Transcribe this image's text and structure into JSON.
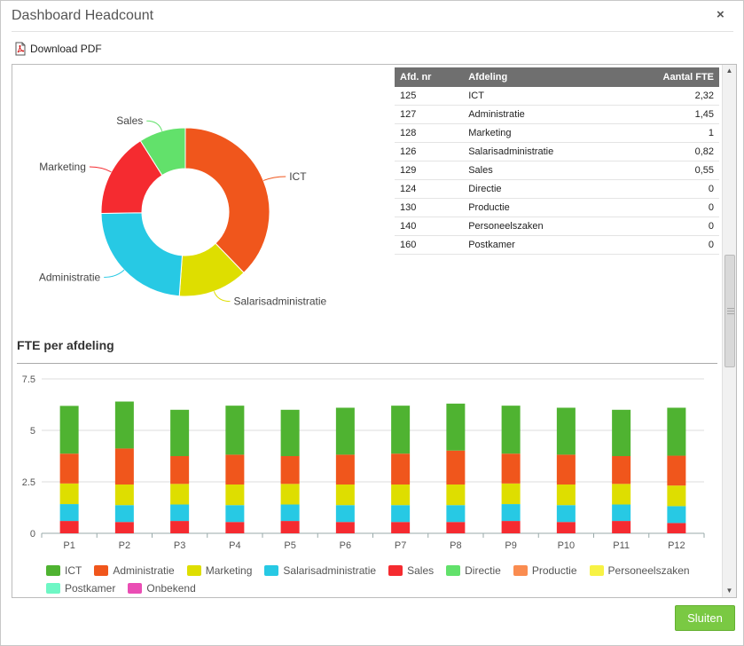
{
  "dialog": {
    "title": "Dashboard Headcount",
    "close_label": "×"
  },
  "toolbar": {
    "download_label": "Download PDF"
  },
  "table": {
    "headers": [
      "Afd. nr",
      "Afdeling",
      "Aantal FTE"
    ],
    "rows": [
      [
        "125",
        "ICT",
        "2,32"
      ],
      [
        "127",
        "Administratie",
        "1,45"
      ],
      [
        "128",
        "Marketing",
        "1"
      ],
      [
        "126",
        "Salarisadministratie",
        "0,82"
      ],
      [
        "129",
        "Sales",
        "0,55"
      ],
      [
        "124",
        "Directie",
        "0"
      ],
      [
        "130",
        "Productie",
        "0"
      ],
      [
        "140",
        "Personeelszaken",
        "0"
      ],
      [
        "160",
        "Postkamer",
        "0"
      ]
    ]
  },
  "section_title": "FTE per afdeling",
  "footer": {
    "close_button": "Sluiten"
  },
  "colors": {
    "ICT": "#f0561c",
    "Administratie": "#27c9e4",
    "Salarisadministratie": "#dede00",
    "Marketing": "#f52b30",
    "Sales": "#62e16b"
  },
  "chart_data": [
    {
      "type": "pie",
      "donut": true,
      "labels": [
        "ICT",
        "Salarisadministratie",
        "Administratie",
        "Marketing",
        "Sales"
      ],
      "values": [
        2.32,
        0.82,
        1.45,
        1.0,
        0.55
      ],
      "colors": [
        "#f0561c",
        "#dede00",
        "#27c9e4",
        "#f52b30",
        "#62e16b"
      ]
    },
    {
      "type": "bar",
      "stacked": true,
      "categories": [
        "P1",
        "P2",
        "P3",
        "P4",
        "P5",
        "P6",
        "P7",
        "P8",
        "P9",
        "P10",
        "P11",
        "P12"
      ],
      "ylim": [
        0,
        7.5
      ],
      "yticks": [
        "0",
        "2.5",
        "5",
        "7.5"
      ],
      "ytick_values": [
        0,
        2.5,
        5,
        7.5
      ],
      "series": [
        {
          "name": "Sales",
          "color": "#f52b30",
          "values": [
            0.6,
            0.55,
            0.6,
            0.55,
            0.6,
            0.55,
            0.55,
            0.55,
            0.6,
            0.55,
            0.6,
            0.5
          ]
        },
        {
          "name": "Salarisadministratie",
          "color": "#27c9e4",
          "values": [
            0.82,
            0.82,
            0.8,
            0.82,
            0.8,
            0.82,
            0.82,
            0.82,
            0.82,
            0.82,
            0.8,
            0.82
          ]
        },
        {
          "name": "Marketing",
          "color": "#dede00",
          "values": [
            1,
            1,
            1,
            1,
            1,
            1,
            1,
            1,
            1,
            1,
            1,
            1
          ]
        },
        {
          "name": "Administratie",
          "color": "#f0561c",
          "values": [
            1.45,
            1.75,
            1.35,
            1.45,
            1.35,
            1.45,
            1.5,
            1.65,
            1.45,
            1.45,
            1.35,
            1.45
          ]
        },
        {
          "name": "ICT",
          "color": "#4fb331",
          "values": [
            2.32,
            2.28,
            2.25,
            2.38,
            2.25,
            2.28,
            2.33,
            2.28,
            2.33,
            2.28,
            2.25,
            2.33
          ]
        }
      ],
      "legend": [
        {
          "name": "ICT",
          "color": "#4fb331"
        },
        {
          "name": "Administratie",
          "color": "#f0561c"
        },
        {
          "name": "Marketing",
          "color": "#dede00"
        },
        {
          "name": "Salarisadministratie",
          "color": "#27c9e4"
        },
        {
          "name": "Sales",
          "color": "#f52b30"
        },
        {
          "name": "Directie",
          "color": "#62e16b"
        },
        {
          "name": "Productie",
          "color": "#fa8c50"
        },
        {
          "name": "Personeelszaken",
          "color": "#f7f244"
        },
        {
          "name": "Postkamer",
          "color": "#6ef7c5"
        },
        {
          "name": "Onbekend",
          "color": "#ea4db4"
        }
      ]
    }
  ]
}
